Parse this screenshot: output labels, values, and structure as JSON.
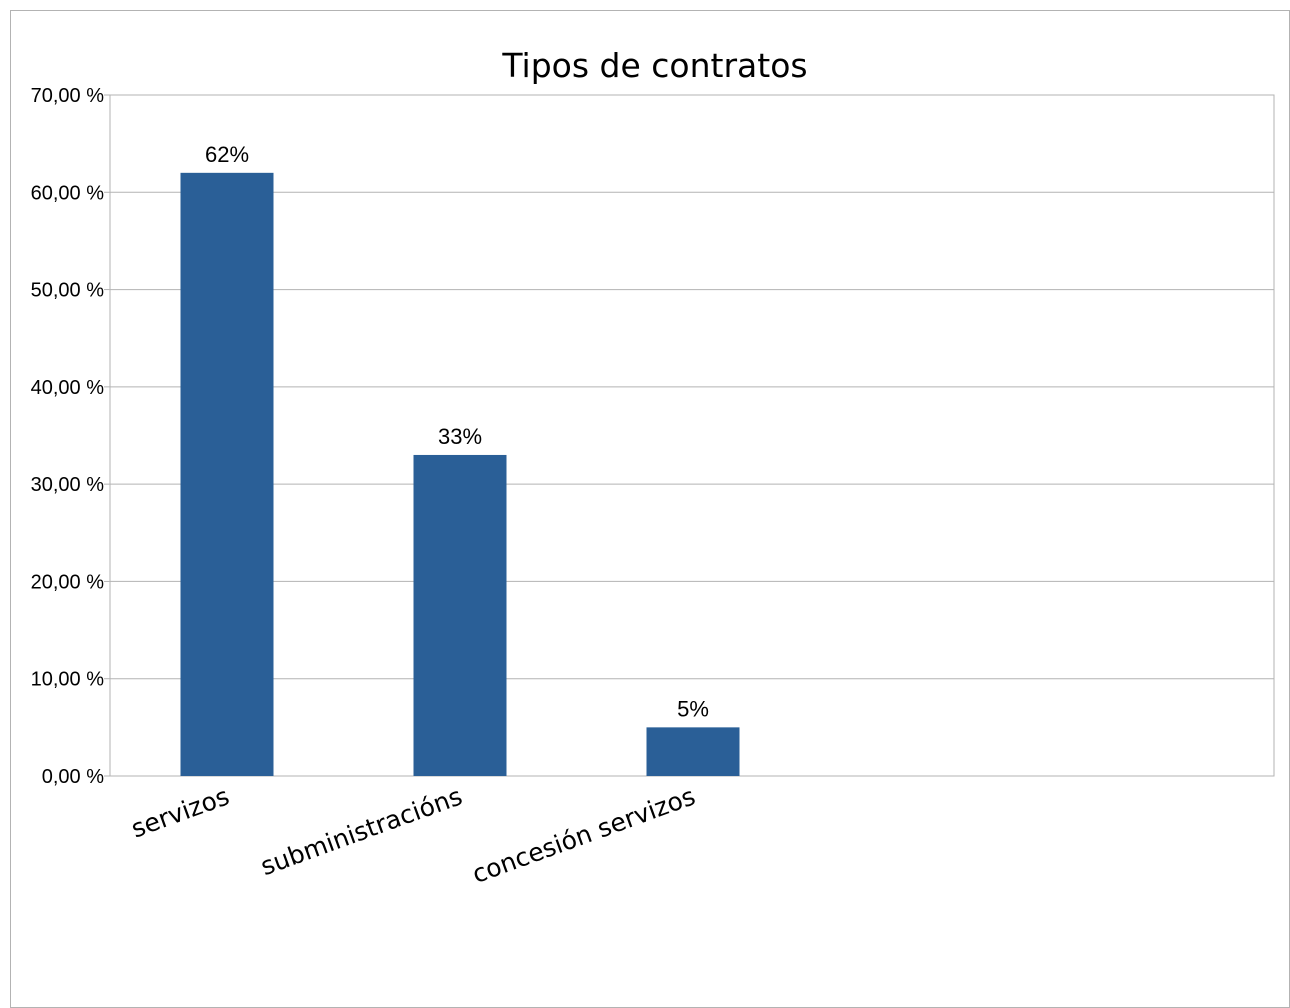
{
  "chart_data": {
    "type": "bar",
    "title": "Tipos de contratos",
    "categories": [
      "servizos",
      "subministracións",
      "concesión servizos"
    ],
    "values": [
      62,
      33,
      5
    ],
    "value_labels": [
      "62%",
      "33%",
      "5%"
    ],
    "ylim": [
      0,
      70
    ],
    "yticks": [
      0,
      10,
      20,
      30,
      40,
      50,
      60,
      70
    ],
    "ytick_labels": [
      "0,00 %",
      "10,00 %",
      "20,00 %",
      "30,00 %",
      "40,00 %",
      "50,00 %",
      "60,00 %",
      "70,00 %"
    ],
    "grid": true,
    "legend": "none",
    "bar_color": "#2a5f97"
  }
}
